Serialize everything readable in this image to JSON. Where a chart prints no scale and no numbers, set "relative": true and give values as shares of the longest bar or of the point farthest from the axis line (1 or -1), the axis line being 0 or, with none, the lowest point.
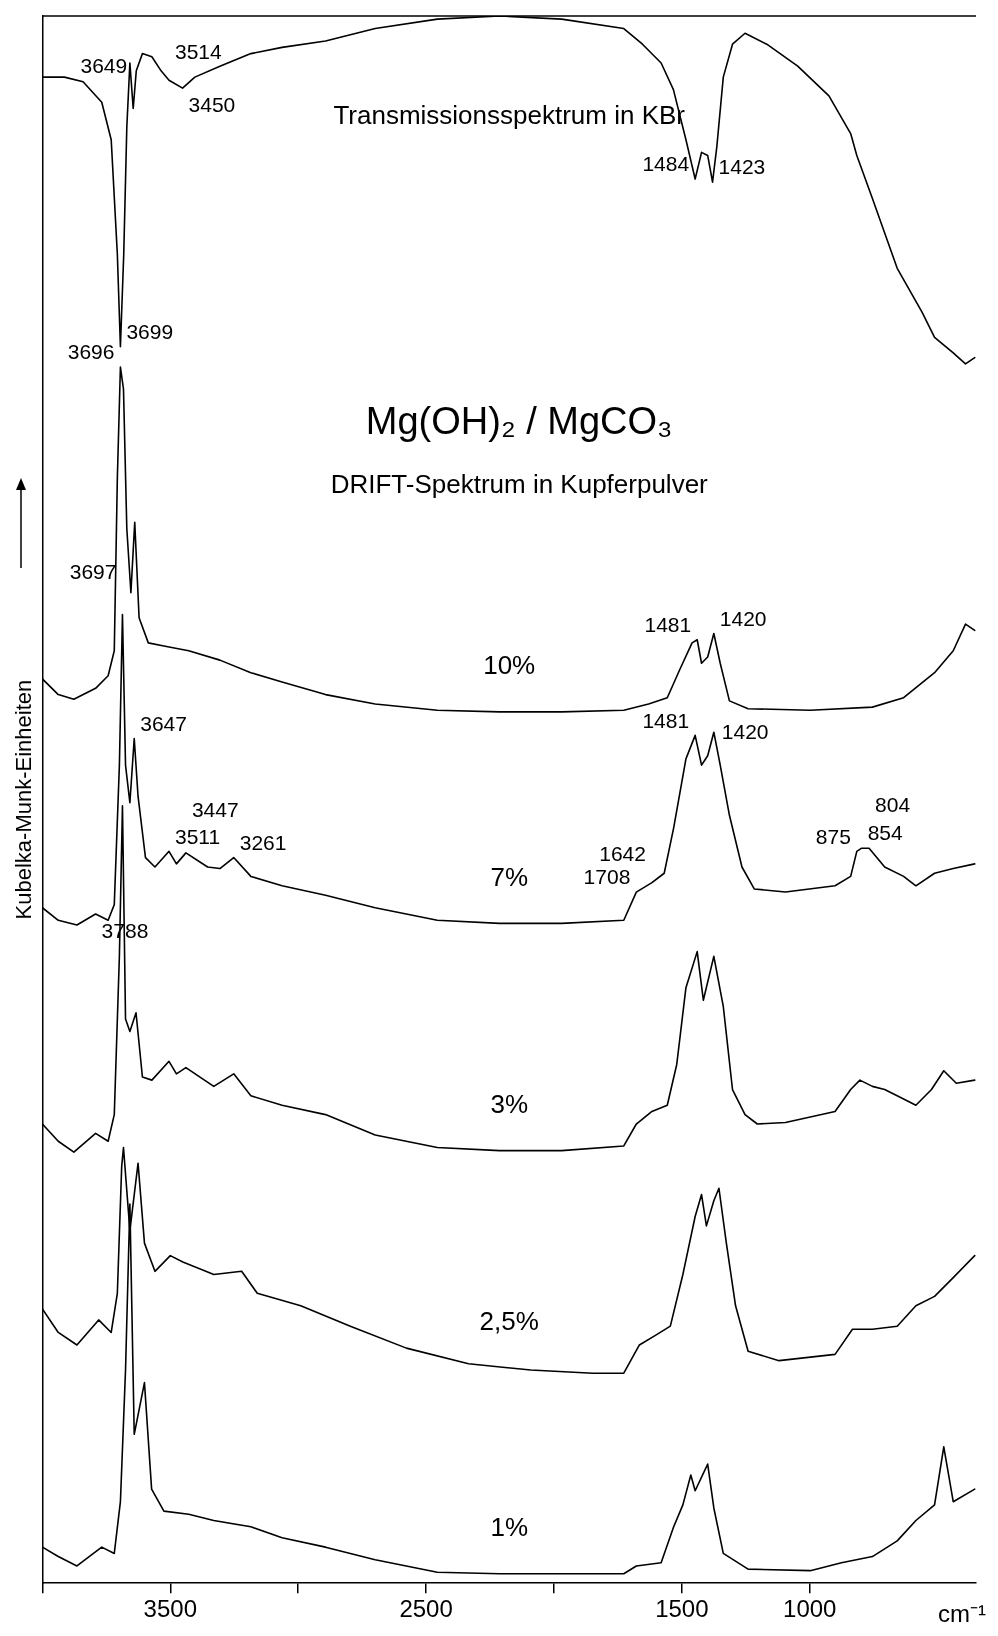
{
  "chart_data": {
    "type": "line",
    "title": "Mg(OH)₂ / MgCO₃",
    "subtitle": "DRIFT-Spektrum in Kupferpulver",
    "xlabel": "cm⁻¹",
    "ylabel": "Kubelka-Munk-Einheiten",
    "relative": true,
    "legend": false,
    "grid": false,
    "marker": "none",
    "line_style": "solid",
    "tick_labels": "x",
    "xlim": [
      4000,
      350
    ],
    "xticks": [
      {
        "value": 4000,
        "label": null
      },
      3500,
      {
        "value": 3000,
        "label": null
      },
      2500,
      {
        "value": 2000,
        "label": null
      },
      1500,
      1000
    ],
    "series": [
      {
        "name": "Transmissionsspektrum in KBr",
        "color": "#000000",
        "x": [
          4000,
          3914,
          3841,
          3768,
          3731,
          3707,
          3695,
          3682,
          3670,
          3658,
          3645,
          3633,
          3609,
          3572,
          3536,
          3505,
          3452,
          3404,
          3306,
          3185,
          3063,
          2893,
          2699,
          2456,
          2213,
          1970,
          1727,
          1654,
          1581,
          1533,
          1484,
          1448,
          1423,
          1399,
          1380,
          1363,
          1338,
          1302,
          1253,
          1168,
          1047,
          925,
          840,
          816,
          756,
          658,
          561,
          512,
          439,
          391,
          355
        ],
        "values": [
          0.961,
          0.961,
          0.958,
          0.945,
          0.921,
          0.848,
          0.789,
          0.848,
          0.929,
          0.97,
          0.941,
          0.965,
          0.976,
          0.974,
          0.965,
          0.959,
          0.954,
          0.961,
          0.968,
          0.976,
          0.98,
          0.984,
          0.992,
          0.998,
          1.0,
          0.998,
          0.992,
          0.982,
          0.97,
          0.953,
          0.921,
          0.896,
          0.913,
          0.911,
          0.894,
          0.917,
          0.961,
          0.982,
          0.989,
          0.982,
          0.968,
          0.949,
          0.925,
          0.911,
          0.884,
          0.839,
          0.811,
          0.795,
          0.785,
          0.778,
          0.782
        ]
      },
      {
        "name": "10%",
        "color": "#000000",
        "x": [
          4000,
          3938,
          3877,
          3792,
          3743,
          3719,
          3707,
          3695,
          3683,
          3670,
          3654,
          3639,
          3622,
          3586,
          3525,
          3428,
          3306,
          3185,
          3063,
          2893,
          2699,
          2456,
          2213,
          1970,
          1727,
          1630,
          1557,
          1508,
          1460,
          1440,
          1423,
          1399,
          1375,
          1350,
          1314,
          1241,
          998,
          755,
          633,
          512,
          439,
          391,
          355
        ],
        "values": [
          0.577,
          0.567,
          0.564,
          0.571,
          0.579,
          0.595,
          0.705,
          0.776,
          0.762,
          0.673,
          0.632,
          0.677,
          0.616,
          0.6,
          0.598,
          0.595,
          0.589,
          0.581,
          0.575,
          0.567,
          0.561,
          0.557,
          0.556,
          0.556,
          0.557,
          0.561,
          0.565,
          0.583,
          0.6,
          0.602,
          0.587,
          0.591,
          0.606,
          0.587,
          0.563,
          0.558,
          0.557,
          0.559,
          0.565,
          0.581,
          0.595,
          0.612,
          0.608
        ]
      },
      {
        "name": "7%",
        "color": "#000000",
        "x": [
          4000,
          3938,
          3865,
          3792,
          3743,
          3719,
          3699,
          3687,
          3675,
          3658,
          3641,
          3626,
          3597,
          3560,
          3505,
          3476,
          3439,
          3354,
          3306,
          3252,
          3185,
          3063,
          2893,
          2699,
          2456,
          2213,
          1970,
          1727,
          1678,
          1617,
          1569,
          1532,
          1484,
          1448,
          1423,
          1399,
          1375,
          1350,
          1314,
          1265,
          1217,
          1095,
          901,
          840,
          816,
          797,
          768,
          707,
          633,
          585,
          512,
          439,
          355
        ],
        "values": [
          0.431,
          0.423,
          0.42,
          0.427,
          0.423,
          0.433,
          0.522,
          0.618,
          0.522,
          0.498,
          0.539,
          0.502,
          0.463,
          0.457,
          0.467,
          0.459,
          0.466,
          0.457,
          0.456,
          0.463,
          0.451,
          0.445,
          0.439,
          0.431,
          0.423,
          0.421,
          0.421,
          0.423,
          0.441,
          0.447,
          0.453,
          0.482,
          0.526,
          0.541,
          0.522,
          0.528,
          0.543,
          0.522,
          0.49,
          0.457,
          0.443,
          0.441,
          0.445,
          0.451,
          0.467,
          0.469,
          0.469,
          0.457,
          0.451,
          0.445,
          0.453,
          0.456,
          0.459
        ]
      },
      {
        "name": "3%",
        "color": "#000000",
        "x": [
          4000,
          3938,
          3877,
          3792,
          3743,
          3719,
          3699,
          3687,
          3675,
          3658,
          3634,
          3609,
          3572,
          3505,
          3476,
          3439,
          3330,
          3252,
          3185,
          3063,
          2893,
          2699,
          2456,
          2213,
          1970,
          1727,
          1678,
          1617,
          1557,
          1520,
          1484,
          1440,
          1416,
          1375,
          1338,
          1302,
          1253,
          1205,
          1095,
          901,
          840,
          804,
          755,
          707,
          633,
          585,
          524,
          476,
          427,
          355
        ],
        "values": [
          0.293,
          0.282,
          0.275,
          0.287,
          0.282,
          0.299,
          0.4,
          0.496,
          0.36,
          0.352,
          0.364,
          0.323,
          0.321,
          0.333,
          0.325,
          0.329,
          0.317,
          0.325,
          0.311,
          0.305,
          0.299,
          0.286,
          0.278,
          0.276,
          0.276,
          0.279,
          0.293,
          0.301,
          0.305,
          0.331,
          0.38,
          0.403,
          0.372,
          0.4,
          0.368,
          0.315,
          0.299,
          0.293,
          0.294,
          0.301,
          0.315,
          0.321,
          0.317,
          0.315,
          0.309,
          0.305,
          0.315,
          0.327,
          0.319,
          0.321
        ]
      },
      {
        "name": "2,5%",
        "color": "#000000",
        "x": [
          4000,
          3938,
          3865,
          3780,
          3731,
          3707,
          3690,
          3683,
          3658,
          3626,
          3601,
          3560,
          3500,
          3451,
          3330,
          3221,
          3160,
          2990,
          2796,
          2577,
          2334,
          2091,
          1848,
          1727,
          1666,
          1605,
          1545,
          1496,
          1448,
          1423,
          1404,
          1375,
          1355,
          1326,
          1290,
          1241,
          1120,
          901,
          833,
          755,
          658,
          585,
          512,
          439,
          355
        ],
        "values": [
          0.175,
          0.16,
          0.152,
          0.168,
          0.16,
          0.185,
          0.266,
          0.278,
          0.225,
          0.268,
          0.217,
          0.199,
          0.209,
          0.205,
          0.197,
          0.199,
          0.185,
          0.177,
          0.164,
          0.15,
          0.14,
          0.136,
          0.134,
          0.134,
          0.152,
          0.158,
          0.164,
          0.197,
          0.234,
          0.248,
          0.228,
          0.244,
          0.252,
          0.217,
          0.177,
          0.148,
          0.142,
          0.146,
          0.162,
          0.162,
          0.164,
          0.177,
          0.183,
          0.195,
          0.209
        ]
      },
      {
        "name": "1%",
        "color": "#000000",
        "x": [
          4000,
          3938,
          3865,
          3768,
          3719,
          3695,
          3675,
          3658,
          3641,
          3601,
          3573,
          3525,
          3428,
          3330,
          3185,
          3063,
          2893,
          2699,
          2456,
          2213,
          1970,
          1727,
          1678,
          1581,
          1532,
          1496,
          1465,
          1448,
          1399,
          1375,
          1338,
          1241,
          998,
          876,
          755,
          658,
          585,
          512,
          476,
          439,
          355
        ],
        "values": [
          0.023,
          0.017,
          0.011,
          0.023,
          0.019,
          0.052,
          0.136,
          0.242,
          0.095,
          0.128,
          0.06,
          0.046,
          0.044,
          0.04,
          0.036,
          0.029,
          0.023,
          0.015,
          0.007,
          0.006,
          0.006,
          0.006,
          0.011,
          0.013,
          0.036,
          0.05,
          0.069,
          0.059,
          0.076,
          0.048,
          0.019,
          0.009,
          0.008,
          0.013,
          0.017,
          0.027,
          0.04,
          0.05,
          0.087,
          0.052,
          0.06
        ]
      }
    ],
    "annotations": [
      {
        "text": "3699",
        "x": 3695,
        "y": 0.789
      },
      {
        "text": "3649",
        "x": 3645,
        "y": 0.941
      },
      {
        "text": "3514",
        "x": 3505,
        "y": 0.959
      },
      {
        "text": "3450",
        "x": 3452,
        "y": 0.954
      },
      {
        "text": "1484",
        "x": 1448,
        "y": 0.896
      },
      {
        "text": "1423",
        "x": 1380,
        "y": 0.894
      },
      {
        "text": "3696",
        "x": 3695,
        "y": 0.776
      },
      {
        "text": "1481",
        "x": 1440,
        "y": 0.602
      },
      {
        "text": "1420",
        "x": 1375,
        "y": 0.606
      },
      {
        "text": "3697",
        "x": 3687,
        "y": 0.618
      },
      {
        "text": "3647",
        "x": 3641,
        "y": 0.539
      },
      {
        "text": "3511",
        "x": 3505,
        "y": 0.467
      },
      {
        "text": "3447",
        "x": 3439,
        "y": 0.466
      },
      {
        "text": "3261",
        "x": 3252,
        "y": 0.463
      },
      {
        "text": "3788",
        "x": 3792,
        "y": 0.427
      },
      {
        "text": "1708",
        "x": 1678,
        "y": 0.441
      },
      {
        "text": "1642",
        "x": 1617,
        "y": 0.447
      },
      {
        "text": "1481",
        "x": 1448,
        "y": 0.541
      },
      {
        "text": "1420",
        "x": 1375,
        "y": 0.543
      },
      {
        "text": "875",
        "x": 816,
        "y": 0.467
      },
      {
        "text": "854",
        "x": 797,
        "y": 0.469
      },
      {
        "text": "804",
        "x": 768,
        "y": 0.469
      }
    ]
  }
}
